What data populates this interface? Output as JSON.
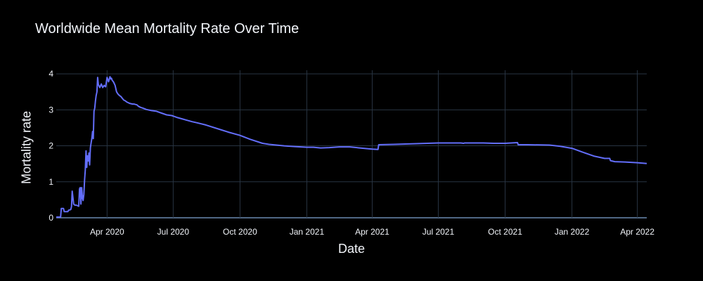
{
  "chart_data": {
    "type": "line",
    "title": "Worldwide Mean Mortality Rate Over Time",
    "xlabel": "Date",
    "ylabel": "Mortality rate",
    "xlim": [
      "2020-01-22",
      "2022-04-14"
    ],
    "ylim": [
      0,
      4.1
    ],
    "grid": true,
    "legend": "none",
    "line_color": "#636efa",
    "background": "#000000",
    "grid_color": "#283442",
    "x_ticks": [
      {
        "date": "2020-04-01",
        "label": "Apr 2020"
      },
      {
        "date": "2020-07-01",
        "label": "Jul 2020"
      },
      {
        "date": "2020-10-01",
        "label": "Oct 2020"
      },
      {
        "date": "2021-01-01",
        "label": "Jan 2021"
      },
      {
        "date": "2021-04-01",
        "label": "Apr 2021"
      },
      {
        "date": "2021-07-01",
        "label": "Jul 2021"
      },
      {
        "date": "2021-10-01",
        "label": "Oct 2021"
      },
      {
        "date": "2022-01-01",
        "label": "Jan 2022"
      },
      {
        "date": "2022-04-01",
        "label": "Apr 2022"
      }
    ],
    "y_ticks": [
      0,
      1,
      2,
      3,
      4
    ],
    "series": [
      {
        "x": [
          "2020-01-22",
          "2020-01-28",
          "2020-01-29",
          "2020-02-01",
          "2020-02-02",
          "2020-02-07",
          "2020-02-08",
          "2020-02-10",
          "2020-02-11",
          "2020-02-12",
          "2020-02-13",
          "2020-02-15",
          "2020-02-16",
          "2020-02-18",
          "2020-02-19",
          "2020-02-20",
          "2020-02-21",
          "2020-02-22",
          "2020-02-23",
          "2020-02-24",
          "2020-02-25",
          "2020-02-26",
          "2020-02-27",
          "2020-02-28",
          "2020-02-29",
          "2020-03-01",
          "2020-03-02",
          "2020-03-03",
          "2020-03-04",
          "2020-03-05",
          "2020-03-06",
          "2020-03-07",
          "2020-03-08",
          "2020-03-09",
          "2020-03-10",
          "2020-03-11",
          "2020-03-12",
          "2020-03-13",
          "2020-03-14",
          "2020-03-15",
          "2020-03-16",
          "2020-03-17",
          "2020-03-18",
          "2020-03-19",
          "2020-03-20",
          "2020-03-22",
          "2020-03-24",
          "2020-03-26",
          "2020-03-28",
          "2020-03-30",
          "2020-04-01",
          "2020-04-03",
          "2020-04-05",
          "2020-04-06",
          "2020-04-07",
          "2020-04-08",
          "2020-04-10",
          "2020-04-12",
          "2020-04-14",
          "2020-04-16",
          "2020-04-18",
          "2020-04-20",
          "2020-04-22",
          "2020-04-24",
          "2020-04-26",
          "2020-04-28",
          "2020-04-30",
          "2020-05-02",
          "2020-05-04",
          "2020-05-06",
          "2020-05-08",
          "2020-05-10",
          "2020-05-12",
          "2020-05-14",
          "2020-05-17",
          "2020-05-20",
          "2020-05-25",
          "2020-06-01",
          "2020-06-08",
          "2020-06-15",
          "2020-06-22",
          "2020-06-29",
          "2020-07-06",
          "2020-07-13",
          "2020-07-20",
          "2020-07-27",
          "2020-08-03",
          "2020-08-15",
          "2020-09-01",
          "2020-09-15",
          "2020-10-01",
          "2020-10-15",
          "2020-11-01",
          "2020-11-10",
          "2020-11-20",
          "2020-12-01",
          "2020-12-15",
          "2021-01-01",
          "2021-01-10",
          "2021-01-20",
          "2021-02-01",
          "2021-02-15",
          "2021-03-01",
          "2021-03-15",
          "2021-04-01",
          "2021-04-09",
          "2021-04-10",
          "2021-05-01",
          "2021-06-01",
          "2021-07-01",
          "2021-08-01",
          "2021-08-05",
          "2021-08-06",
          "2021-09-01",
          "2021-09-15",
          "2021-10-01",
          "2021-10-18",
          "2021-10-19",
          "2021-11-01",
          "2021-12-01",
          "2021-12-15",
          "2022-01-01",
          "2022-01-15",
          "2022-02-01",
          "2022-02-15",
          "2022-02-22",
          "2022-02-23",
          "2022-03-01",
          "2022-03-15",
          "2022-04-01",
          "2022-04-14"
        ],
        "y": [
          0.02,
          0.02,
          0.26,
          0.26,
          0.17,
          0.17,
          0.21,
          0.22,
          0.23,
          0.31,
          0.74,
          0.38,
          0.36,
          0.35,
          0.35,
          0.34,
          0.33,
          0.32,
          0.8,
          0.84,
          0.38,
          0.84,
          0.56,
          0.48,
          0.65,
          1.05,
          1.32,
          1.86,
          1.4,
          1.72,
          1.58,
          1.8,
          1.47,
          1.95,
          2.08,
          2.2,
          2.4,
          2.2,
          2.96,
          3.05,
          3.25,
          3.4,
          3.5,
          3.9,
          3.7,
          3.62,
          3.72,
          3.62,
          3.68,
          3.64,
          3.9,
          3.78,
          3.92,
          3.86,
          3.88,
          3.82,
          3.77,
          3.68,
          3.5,
          3.44,
          3.4,
          3.37,
          3.32,
          3.27,
          3.25,
          3.22,
          3.2,
          3.18,
          3.17,
          3.16,
          3.16,
          3.15,
          3.14,
          3.1,
          3.07,
          3.05,
          3.01,
          2.98,
          2.96,
          2.91,
          2.86,
          2.84,
          2.79,
          2.75,
          2.71,
          2.67,
          2.64,
          2.58,
          2.47,
          2.38,
          2.29,
          2.18,
          2.07,
          2.04,
          2.02,
          2.0,
          1.98,
          1.96,
          1.96,
          1.94,
          1.95,
          1.97,
          1.97,
          1.94,
          1.91,
          1.9,
          2.03,
          2.04,
          2.06,
          2.08,
          2.08,
          2.07,
          2.08,
          2.08,
          2.07,
          2.07,
          2.09,
          2.03,
          2.03,
          2.02,
          1.99,
          1.93,
          1.83,
          1.71,
          1.65,
          1.65,
          1.59,
          1.56,
          1.55,
          1.53,
          1.51
        ]
      }
    ]
  }
}
